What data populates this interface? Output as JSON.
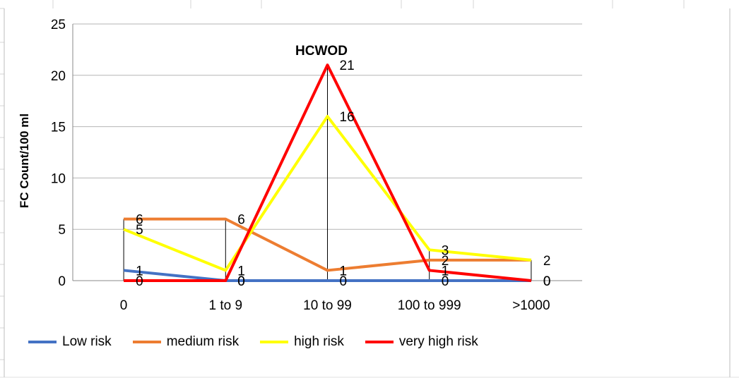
{
  "chart_data": {
    "type": "line",
    "categories": [
      "0",
      "1 to 9",
      "10 to 99",
      "100 to 999",
      ">1000"
    ],
    "ylabel": "FC Count/100 ml",
    "ylim": [
      0,
      25
    ],
    "yticks": [
      "0",
      "5",
      "10",
      "15",
      "20",
      "25"
    ],
    "grid": true,
    "legend_position": "bottom",
    "annotation": "HCWOD",
    "series": [
      {
        "name": "Low risk",
        "color": "#4472c4",
        "values": [
          1,
          0,
          0,
          0,
          0
        ],
        "labels": [
          "1",
          "0",
          "0",
          "0",
          "0"
        ]
      },
      {
        "name": "medium risk",
        "color": "#ed7d31",
        "values": [
          6,
          6,
          1,
          2,
          2
        ],
        "labels": [
          "6",
          "6",
          "1",
          "2",
          "2"
        ]
      },
      {
        "name": "high risk",
        "color": "#ffff00",
        "values": [
          5,
          1,
          16,
          3,
          2
        ],
        "labels": [
          "5",
          "1",
          "16",
          "3",
          ""
        ]
      },
      {
        "name": "very high risk",
        "color": "#ff0000",
        "values": [
          0,
          0,
          21,
          1,
          0
        ],
        "labels": [
          "0",
          "0",
          "21",
          "1",
          "0"
        ]
      }
    ]
  }
}
